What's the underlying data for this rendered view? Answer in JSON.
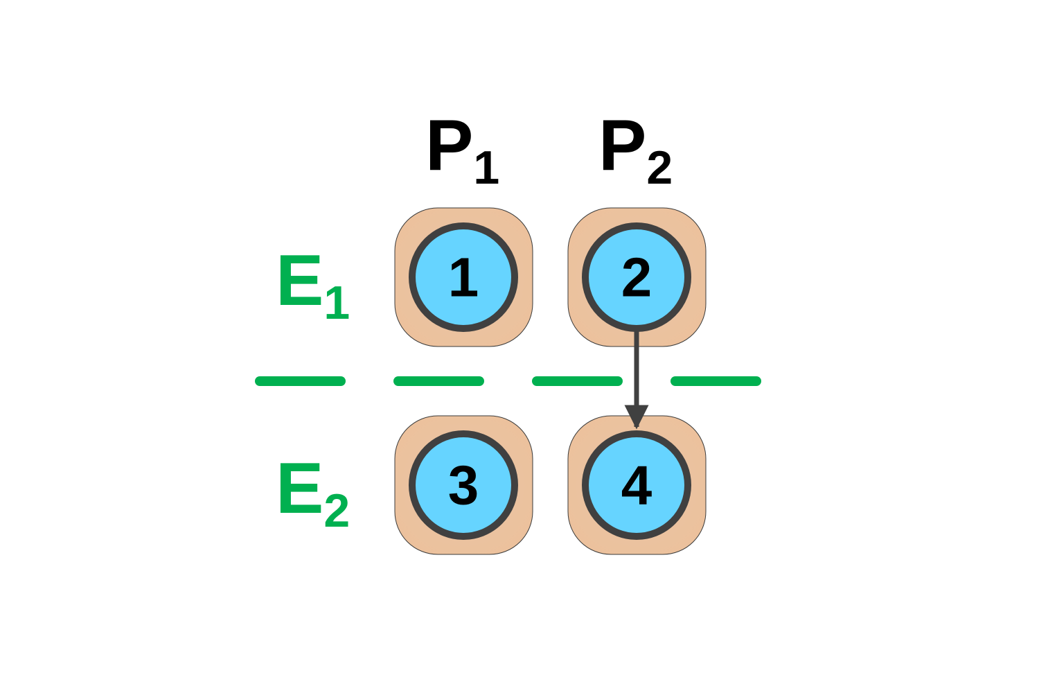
{
  "columns": [
    {
      "letter": "P",
      "sub": "1"
    },
    {
      "letter": "P",
      "sub": "2"
    }
  ],
  "rows": [
    {
      "letter": "E",
      "sub": "1"
    },
    {
      "letter": "E",
      "sub": "2"
    }
  ],
  "nodes": [
    {
      "label": "1"
    },
    {
      "label": "2"
    },
    {
      "label": "3"
    },
    {
      "label": "4"
    }
  ],
  "edges": [
    {
      "from": "2",
      "to": "4"
    }
  ],
  "colors": {
    "row_label": "#00b050",
    "separator": "#00b050",
    "node_fill": "#66d4ff",
    "node_stroke": "#404040",
    "tile_fill": "#ecc19c",
    "tile_stroke": "#3a3a3a",
    "edge": "#404040",
    "text": "#000000"
  },
  "icons": {
    "separator": "dashed-line",
    "edge": "down-arrow"
  }
}
